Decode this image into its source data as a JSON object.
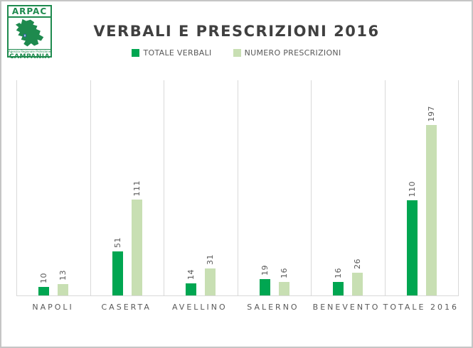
{
  "logo": {
    "name": "ARPAC",
    "agency_line": "Agenzia Regionale Protezione Ambientale",
    "region": "CAMPANIA",
    "green": "#1e8a4e",
    "marker_blue": "#2b5fa5"
  },
  "header": {
    "title": "VERBALI E PRESCRIZIONI 2016"
  },
  "chart_data": {
    "type": "bar",
    "title": "VERBALI E PRESCRIZIONI 2016",
    "categories": [
      "NAPOLI",
      "CASERTA",
      "AVELLINO",
      "SALERNO",
      "BENEVENTO",
      "TOTALE 2016"
    ],
    "series": [
      {
        "name": "TOTALE VERBALI",
        "color": "#00a651",
        "values": [
          10,
          51,
          14,
          19,
          16,
          110
        ]
      },
      {
        "name": "NUMERO PRESCRIZIONI",
        "color": "#c8dfb3",
        "values": [
          13,
          111,
          31,
          16,
          26,
          197
        ]
      }
    ],
    "xlabel": "",
    "ylabel": "",
    "ylim": [
      0,
      250
    ],
    "y_axis_labels_visible": false,
    "grid": "vertical-category-separators",
    "gridline_color": "#d9d9d9",
    "legend_position": "top-center",
    "data_labels": "values-rotated-90-above-bars",
    "label_color": "#595959",
    "title_color": "#404040"
  }
}
